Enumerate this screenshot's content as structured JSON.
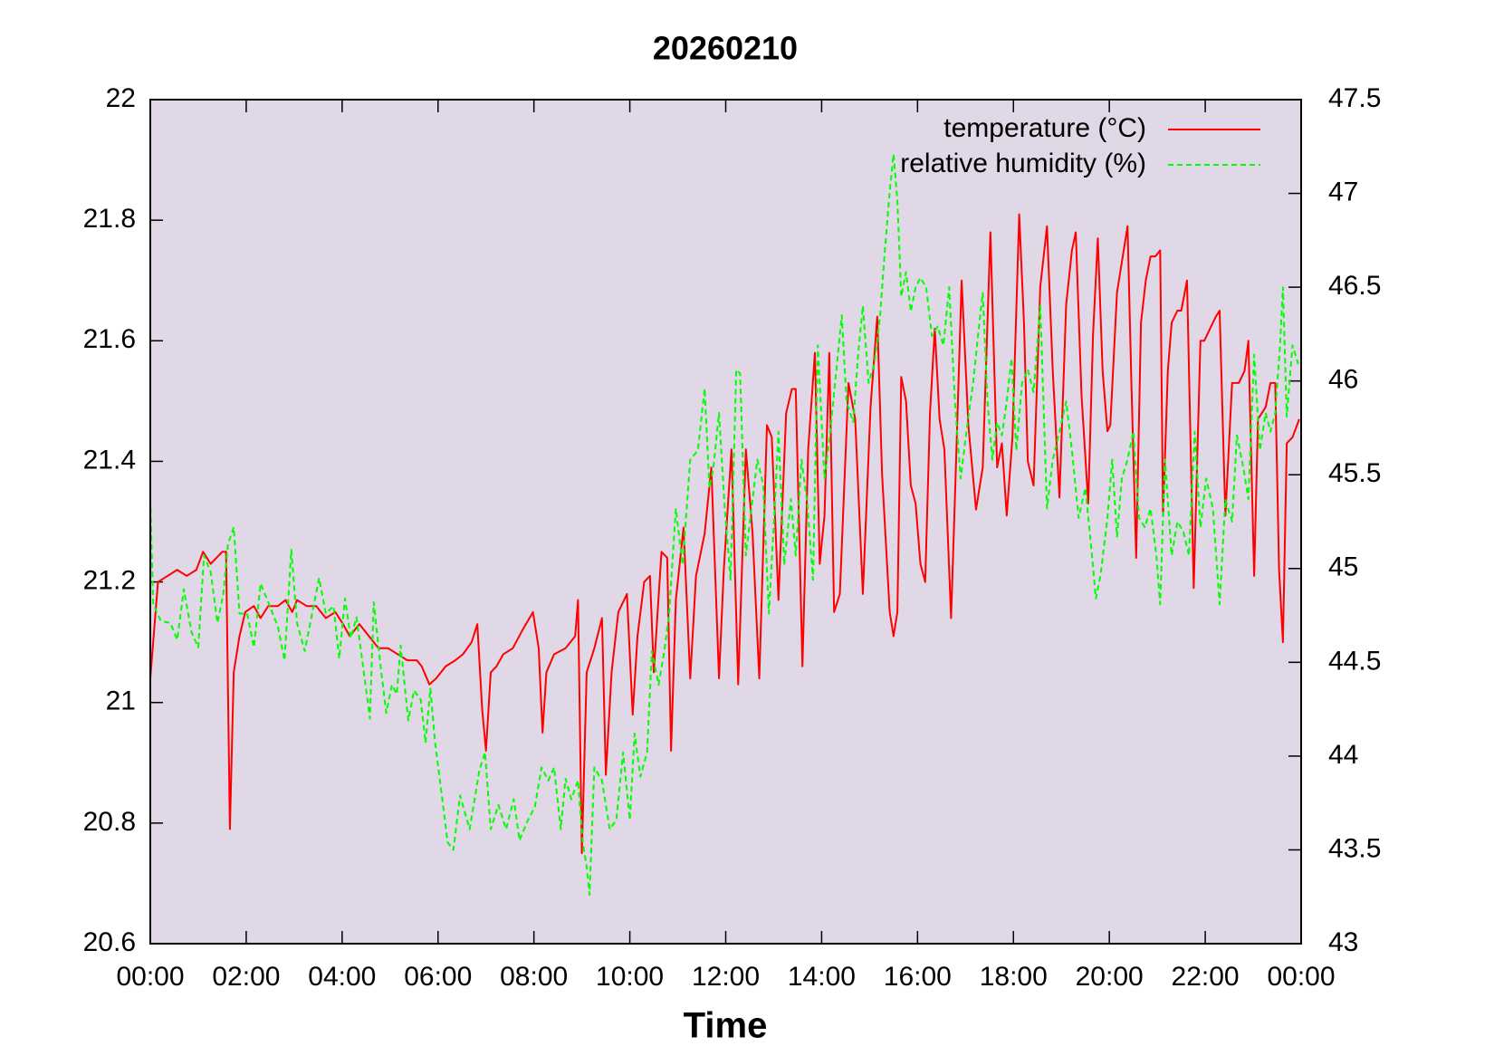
{
  "chart_data": {
    "type": "line",
    "title": "20260210",
    "xlabel": "Time",
    "xlim": [
      0,
      24
    ],
    "xticks": [
      {
        "value": 0,
        "label": "00:00"
      },
      {
        "value": 2,
        "label": "02:00"
      },
      {
        "value": 4,
        "label": "04:00"
      },
      {
        "value": 6,
        "label": "06:00"
      },
      {
        "value": 8,
        "label": "08:00"
      },
      {
        "value": 10,
        "label": "10:00"
      },
      {
        "value": 12,
        "label": "12:00"
      },
      {
        "value": 14,
        "label": "14:00"
      },
      {
        "value": 16,
        "label": "16:00"
      },
      {
        "value": 18,
        "label": "18:00"
      },
      {
        "value": 20,
        "label": "20:00"
      },
      {
        "value": 22,
        "label": "22:00"
      },
      {
        "value": 24,
        "label": "00:00"
      }
    ],
    "ylim": [
      20.6,
      22
    ],
    "yticks": [
      20.6,
      20.8,
      21,
      21.2,
      21.4,
      21.6,
      21.8,
      22
    ],
    "y2lim": [
      43,
      47.5
    ],
    "y2ticks": [
      43,
      43.5,
      44,
      44.5,
      45,
      45.5,
      46,
      46.5,
      47,
      47.5
    ],
    "grid": false,
    "legend": "top-right",
    "background": "#e0d8e6",
    "series": [
      {
        "name": "temperature (°C)",
        "color": "#ff0000",
        "axis": "y",
        "style": "solid",
        "x": [
          0,
          0.16,
          0.36,
          0.56,
          0.76,
          0.96,
          1.1,
          1.26,
          1.5,
          1.58,
          1.66,
          1.74,
          1.86,
          1.98,
          2.16,
          2.3,
          2.46,
          2.66,
          2.82,
          2.96,
          3.06,
          3.26,
          3.46,
          3.66,
          3.86,
          4.02,
          4.16,
          4.36,
          4.56,
          4.76,
          4.96,
          5.16,
          5.36,
          5.56,
          5.66,
          5.82,
          5.96,
          6.16,
          6.36,
          6.52,
          6.7,
          6.82,
          6.92,
          7.0,
          7.1,
          7.22,
          7.36,
          7.56,
          7.76,
          7.98,
          8.1,
          8.18,
          8.26,
          8.42,
          8.66,
          8.86,
          8.92,
          9.0,
          9.1,
          9.26,
          9.42,
          9.5,
          9.62,
          9.76,
          9.94,
          10.06,
          10.16,
          10.3,
          10.42,
          10.5,
          10.66,
          10.78,
          10.86,
          10.96,
          11.12,
          11.26,
          11.38,
          11.56,
          11.7,
          11.86,
          11.96,
          12.12,
          12.26,
          12.42,
          12.56,
          12.7,
          12.86,
          12.96,
          13.1,
          13.26,
          13.38,
          13.46,
          13.6,
          13.72,
          13.86,
          13.96,
          14.06,
          14.16,
          14.26,
          14.38,
          14.56,
          14.7,
          14.86,
          15.02,
          15.16,
          15.26,
          15.42,
          15.5,
          15.58,
          15.66,
          15.76,
          15.86,
          15.96,
          16.06,
          16.16,
          16.26,
          16.36,
          16.46,
          16.56,
          16.7,
          16.8,
          16.92,
          17.06,
          17.22,
          17.36,
          17.52,
          17.66,
          17.76,
          17.86,
          17.98,
          18.12,
          18.22,
          18.3,
          18.42,
          18.56,
          18.7,
          18.82,
          18.96,
          19.1,
          19.22,
          19.3,
          19.42,
          19.56,
          19.66,
          19.76,
          19.86,
          19.96,
          20.02,
          20.16,
          20.26,
          20.38,
          20.46,
          20.56,
          20.66,
          20.76,
          20.86,
          20.96,
          21.06,
          21.12,
          21.22,
          21.3,
          21.42,
          21.5,
          21.62,
          21.76,
          21.9,
          21.98,
          22.1,
          22.22,
          22.3,
          22.42,
          22.56,
          22.7,
          22.82,
          22.9,
          23.02,
          23.1,
          23.26,
          23.36,
          23.46,
          23.54,
          23.62,
          23.7,
          23.82,
          23.96
        ],
        "values": [
          21.04,
          21.2,
          21.21,
          21.22,
          21.21,
          21.22,
          21.25,
          21.23,
          21.25,
          21.25,
          20.79,
          21.05,
          21.11,
          21.15,
          21.16,
          21.14,
          21.16,
          21.16,
          21.17,
          21.15,
          21.17,
          21.16,
          21.16,
          21.14,
          21.15,
          21.13,
          21.11,
          21.13,
          21.11,
          21.09,
          21.09,
          21.08,
          21.07,
          21.07,
          21.06,
          21.03,
          21.04,
          21.06,
          21.07,
          21.08,
          21.1,
          21.13,
          20.99,
          20.92,
          21.05,
          21.06,
          21.08,
          21.09,
          21.12,
          21.15,
          21.09,
          20.95,
          21.05,
          21.08,
          21.09,
          21.11,
          21.17,
          20.75,
          21.05,
          21.09,
          21.14,
          20.88,
          21.05,
          21.15,
          21.18,
          20.98,
          21.11,
          21.2,
          21.21,
          21.05,
          21.25,
          21.24,
          20.92,
          21.17,
          21.29,
          21.04,
          21.21,
          21.28,
          21.39,
          21.04,
          21.22,
          21.42,
          21.03,
          21.42,
          21.28,
          21.04,
          21.46,
          21.44,
          21.17,
          21.48,
          21.52,
          21.52,
          21.06,
          21.42,
          21.58,
          21.23,
          21.31,
          21.58,
          21.15,
          21.18,
          21.53,
          21.47,
          21.18,
          21.49,
          21.64,
          21.38,
          21.15,
          21.11,
          21.15,
          21.54,
          21.5,
          21.36,
          21.33,
          21.23,
          21.2,
          21.48,
          21.62,
          21.47,
          21.42,
          21.14,
          21.39,
          21.7,
          21.46,
          21.32,
          21.39,
          21.78,
          21.39,
          21.43,
          21.31,
          21.44,
          21.81,
          21.63,
          21.4,
          21.36,
          21.69,
          21.79,
          21.55,
          21.34,
          21.66,
          21.75,
          21.78,
          21.51,
          21.33,
          21.61,
          21.77,
          21.55,
          21.45,
          21.46,
          21.68,
          21.73,
          21.79,
          21.53,
          21.24,
          21.63,
          21.7,
          21.74,
          21.74,
          21.75,
          21.31,
          21.55,
          21.63,
          21.65,
          21.65,
          21.7,
          21.19,
          21.6,
          21.6,
          21.62,
          21.64,
          21.65,
          21.31,
          21.53,
          21.53,
          21.55,
          21.6,
          21.21,
          21.47,
          21.49,
          21.53,
          21.53,
          21.22,
          21.1,
          21.43,
          21.44,
          21.47
        ]
      },
      {
        "name": "relative humidity (%)",
        "color": "#00ff00",
        "axis": "y2",
        "style": "dashed",
        "x": [
          0,
          0.06,
          0.22,
          0.42,
          0.56,
          0.7,
          0.86,
          1.0,
          1.12,
          1.26,
          1.4,
          1.52,
          1.62,
          1.74,
          1.86,
          2.02,
          2.16,
          2.3,
          2.46,
          2.66,
          2.8,
          2.94,
          3.06,
          3.22,
          3.36,
          3.52,
          3.66,
          3.82,
          3.94,
          4.06,
          4.18,
          4.3,
          4.42,
          4.58,
          4.66,
          4.78,
          4.92,
          5.04,
          5.14,
          5.22,
          5.38,
          5.5,
          5.64,
          5.74,
          5.84,
          5.94,
          6.08,
          6.2,
          6.32,
          6.46,
          6.66,
          6.86,
          6.98,
          7.1,
          7.26,
          7.42,
          7.58,
          7.7,
          7.86,
          8.02,
          8.16,
          8.3,
          8.42,
          8.56,
          8.66,
          8.78,
          8.92,
          9.02,
          9.1,
          9.16,
          9.26,
          9.42,
          9.58,
          9.72,
          9.86,
          10.0,
          10.1,
          10.22,
          10.36,
          10.46,
          10.6,
          10.72,
          10.82,
          10.96,
          11.1,
          11.26,
          11.42,
          11.56,
          11.66,
          11.74,
          11.86,
          11.98,
          12.1,
          12.22,
          12.3,
          12.42,
          12.56,
          12.66,
          12.78,
          12.9,
          13.02,
          13.1,
          13.22,
          13.36,
          13.46,
          13.58,
          13.7,
          13.82,
          13.92,
          14.06,
          14.18,
          14.3,
          14.42,
          14.52,
          14.66,
          14.76,
          14.86,
          14.98,
          15.1,
          15.22,
          15.32,
          15.42,
          15.5,
          15.58,
          15.66,
          15.76,
          15.86,
          15.96,
          16.06,
          16.18,
          16.3,
          16.42,
          16.54,
          16.66,
          16.78,
          16.9,
          17.02,
          17.16,
          17.26,
          17.36,
          17.46,
          17.56,
          17.66,
          17.76,
          17.86,
          17.96,
          18.06,
          18.18,
          18.3,
          18.42,
          18.56,
          18.7,
          18.82,
          18.96,
          19.1,
          19.22,
          19.36,
          19.5,
          19.62,
          19.72,
          19.82,
          19.96,
          20.06,
          20.16,
          20.26,
          20.38,
          20.5,
          20.62,
          20.74,
          20.86,
          20.98,
          21.06,
          21.16,
          21.3,
          21.42,
          21.54,
          21.66,
          21.78,
          21.9,
          22.02,
          22.16,
          22.3,
          22.42,
          22.56,
          22.66,
          22.8,
          22.9,
          23.02,
          23.14,
          23.26,
          23.36,
          23.46,
          23.56,
          23.62,
          23.7,
          23.82,
          23.94
        ],
        "values": [
          45.37,
          44.81,
          44.72,
          44.71,
          44.62,
          44.89,
          44.66,
          44.58,
          45.07,
          44.98,
          44.71,
          44.86,
          45.13,
          45.22,
          44.76,
          44.76,
          44.58,
          44.92,
          44.82,
          44.69,
          44.51,
          45.1,
          44.71,
          44.56,
          44.74,
          44.95,
          44.76,
          44.8,
          44.52,
          44.84,
          44.63,
          44.74,
          44.51,
          44.2,
          44.82,
          44.53,
          44.23,
          44.38,
          44.33,
          44.59,
          44.19,
          44.35,
          44.3,
          44.07,
          44.36,
          44.07,
          43.79,
          43.54,
          43.5,
          43.79,
          43.61,
          43.92,
          44.02,
          43.61,
          43.74,
          43.61,
          43.77,
          43.55,
          43.65,
          43.73,
          43.94,
          43.87,
          43.94,
          43.61,
          43.88,
          43.77,
          43.87,
          43.54,
          43.41,
          43.26,
          43.94,
          43.87,
          43.61,
          43.66,
          44.02,
          43.66,
          44.12,
          43.89,
          44.02,
          44.56,
          44.38,
          44.56,
          44.76,
          45.32,
          45.02,
          45.58,
          45.63,
          45.96,
          45.43,
          45.53,
          45.83,
          45.32,
          44.94,
          46.06,
          46.04,
          45.07,
          45.37,
          45.58,
          45.45,
          44.76,
          45.32,
          45.73,
          45.02,
          45.37,
          45.07,
          45.58,
          45.35,
          44.94,
          46.19,
          45.48,
          45.73,
          46.04,
          46.35,
          45.89,
          45.78,
          46.14,
          46.4,
          45.99,
          46.09,
          46.35,
          46.7,
          47.01,
          47.21,
          46.96,
          46.45,
          46.58,
          46.37,
          46.5,
          46.55,
          46.5,
          46.24,
          46.29,
          46.19,
          46.5,
          45.89,
          45.48,
          45.73,
          45.99,
          46.24,
          46.47,
          45.89,
          45.58,
          45.78,
          45.71,
          45.89,
          46.12,
          45.63,
          45.99,
          46.06,
          45.94,
          46.4,
          45.32,
          45.58,
          45.73,
          45.89,
          45.63,
          45.27,
          45.43,
          45.12,
          44.84,
          44.97,
          45.27,
          45.58,
          45.17,
          45.48,
          45.58,
          45.73,
          45.27,
          45.22,
          45.32,
          45.07,
          44.81,
          45.58,
          45.07,
          45.25,
          45.2,
          45.07,
          45.73,
          45.22,
          45.48,
          45.32,
          44.81,
          45.37,
          45.25,
          45.71,
          45.53,
          45.37,
          46.14,
          45.63,
          45.83,
          45.73,
          45.83,
          46.19,
          46.5,
          45.81,
          46.19,
          46.09
        ]
      }
    ]
  }
}
